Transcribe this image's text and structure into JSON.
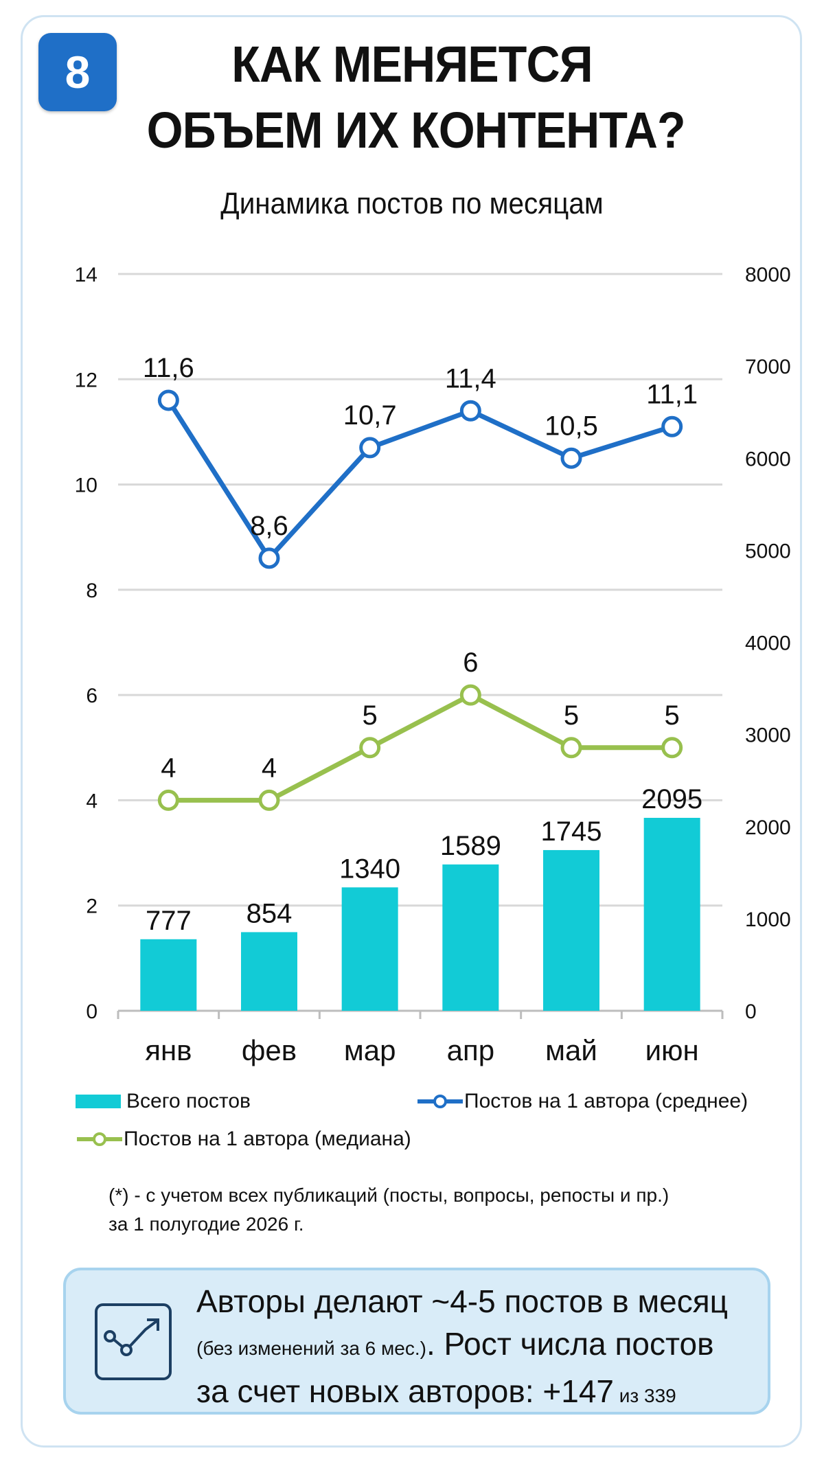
{
  "badge": "8",
  "title": [
    "КАК МЕНЯЕТСЯ",
    "ОБЪЕМ ИХ КОНТЕНТА?"
  ],
  "colors": {
    "bar": "#12cbd6",
    "mean_line": "#1f6fc7",
    "median_line": "#98c04e",
    "grid": "#d8d8d8",
    "badge": "#1f6fc7",
    "insight_bg": "#d9ecf8"
  },
  "chart_data": {
    "type": "bar",
    "title": "Динамика постов по месяцам",
    "categories": [
      "янв",
      "фев",
      "мар",
      "апр",
      "май",
      "июн"
    ],
    "left_axis": {
      "min": 0,
      "max": 14,
      "ticks": [
        "0",
        "2",
        "4",
        "6",
        "8",
        "10",
        "12",
        "14"
      ]
    },
    "right_axis": {
      "min": 0,
      "max": 8000,
      "ticks": [
        "0",
        "1000",
        "2000",
        "3000",
        "4000",
        "5000",
        "6000",
        "7000",
        "8000"
      ]
    },
    "grid": true,
    "legend_placement": "bottom",
    "series": [
      {
        "name": "Всего постов",
        "type": "bar",
        "axis": "right",
        "values": [
          777,
          854,
          1340,
          1589,
          1745,
          2095
        ],
        "labels": [
          "777",
          "854",
          "1340",
          "1589",
          "1745",
          "2095"
        ]
      },
      {
        "name": "Постов на 1 автора (среднее)",
        "type": "line",
        "axis": "left",
        "values": [
          11.6,
          8.6,
          10.7,
          11.4,
          10.5,
          11.1
        ],
        "labels": [
          "11,6",
          "8,6",
          "10,7",
          "11,4",
          "10,5",
          "11,1"
        ]
      },
      {
        "name": "Постов на 1 автора (медиана)",
        "type": "line",
        "axis": "left",
        "values": [
          4,
          4,
          5,
          6,
          5,
          5
        ],
        "labels": [
          "4",
          "4",
          "5",
          "6",
          "5",
          "5"
        ]
      }
    ]
  },
  "note": [
    "(*) - с учетом всех публикаций (посты, вопросы, репосты и пр.)",
    "за 1 полугодие 2026 г."
  ],
  "insight": {
    "icon": "trend-chart-icon",
    "line1": "Авторы делают ~4-5 постов в месяц",
    "line2_small": "(без изменений за 6 мес.)",
    "line2_main": ". Рост числа постов",
    "line3_main": "за счет новых авторов: +147",
    "line3_small": " из 339"
  }
}
